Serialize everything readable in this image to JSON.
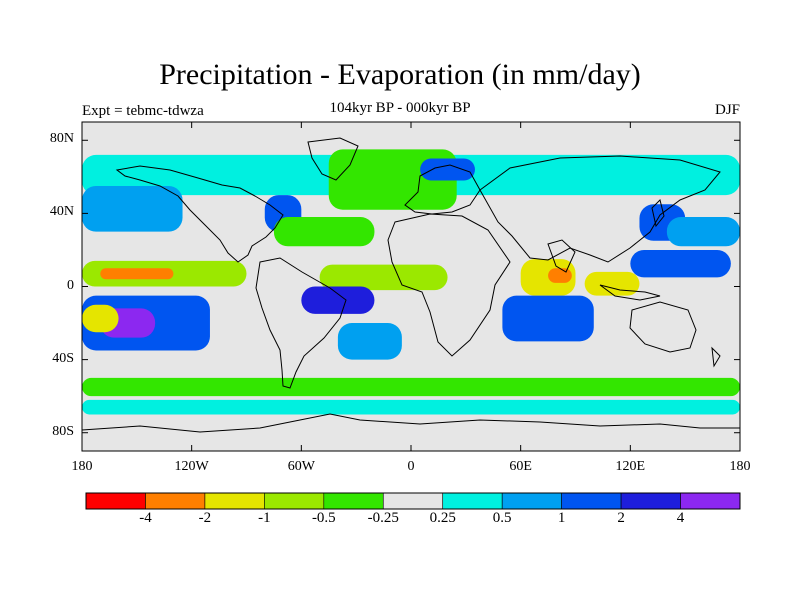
{
  "title": "Precipitation - Evaporation (in mm/day)",
  "subtitle_center": "104kyr BP - 000kyr BP",
  "subtitle_left": "Expt = tebmc-tdwza",
  "subtitle_right": "DJF",
  "map": {
    "background_color": "#e6e6e6",
    "coastline_color": "#000000",
    "lat_range": [
      -90,
      90
    ],
    "lon_range": [
      -180,
      180
    ],
    "y_ticks": [
      {
        "lat": 80,
        "label": "80N"
      },
      {
        "lat": 40,
        "label": "40N"
      },
      {
        "lat": 0,
        "label": "0"
      },
      {
        "lat": -40,
        "label": "40S"
      },
      {
        "lat": -80,
        "label": "80S"
      }
    ],
    "x_ticks": [
      {
        "lon": -180,
        "label": "180"
      },
      {
        "lon": -120,
        "label": "120W"
      },
      {
        "lon": -60,
        "label": "60W"
      },
      {
        "lon": 0,
        "label": "0"
      },
      {
        "lon": 60,
        "label": "60E"
      },
      {
        "lon": 120,
        "label": "120E"
      },
      {
        "lon": 180,
        "label": "180"
      }
    ]
  },
  "colorbar": {
    "colors": [
      "#ff0000",
      "#ff7f00",
      "#e5e500",
      "#9be800",
      "#33e600",
      "#e6e6e6",
      "#00f0e0",
      "#00a0f0",
      "#0055f0",
      "#1e1edc",
      "#8c28f0"
    ],
    "labels": [
      "-4",
      "-2",
      "-1",
      "-0.5",
      "-0.25",
      "0.25",
      "0.5",
      "1",
      "2",
      "4"
    ]
  },
  "chart_data": {
    "type": "heatmap",
    "variable": "Precipitation - Evaporation",
    "units": "mm/day",
    "levels": [
      -4,
      -2,
      -1,
      -0.5,
      -0.25,
      0.25,
      0.5,
      1,
      2,
      4
    ],
    "season": "DJF",
    "regions": [
      {
        "name": "high-lat-north-band",
        "lat": [
          50,
          72
        ],
        "lon": [
          -180,
          180
        ],
        "value": 0.35
      },
      {
        "name": "n-atlantic-storm-track",
        "lat": [
          42,
          75
        ],
        "lon": [
          -45,
          25
        ],
        "value": -0.35
      },
      {
        "name": "scandinavia",
        "lat": [
          58,
          70
        ],
        "lon": [
          5,
          35
        ],
        "value": 1.5
      },
      {
        "name": "n-pacific-east",
        "lat": [
          30,
          55
        ],
        "lon": [
          -180,
          -125
        ],
        "value": 0.7
      },
      {
        "name": "us-east-coast",
        "lat": [
          30,
          50
        ],
        "lon": [
          -80,
          -60
        ],
        "value": 1.5
      },
      {
        "name": "japan",
        "lat": [
          25,
          45
        ],
        "lon": [
          125,
          150
        ],
        "value": 1.5
      },
      {
        "name": "n-pacific-west",
        "lat": [
          22,
          38
        ],
        "lon": [
          140,
          180
        ],
        "value": 0.7
      },
      {
        "name": "n-atlantic-subtrop",
        "lat": [
          22,
          38
        ],
        "lon": [
          -75,
          -20
        ],
        "value": -0.35
      },
      {
        "name": "itcz-pacific",
        "lat": [
          0,
          14
        ],
        "lon": [
          -180,
          -90
        ],
        "value": -0.7
      },
      {
        "name": "itcz-pacific-core",
        "lat": [
          4,
          10
        ],
        "lon": [
          -170,
          -130
        ],
        "value": -3
      },
      {
        "name": "itcz-atlantic",
        "lat": [
          -2,
          12
        ],
        "lon": [
          -50,
          20
        ],
        "value": -0.7
      },
      {
        "name": "indian-ocean-eq",
        "lat": [
          -5,
          15
        ],
        "lon": [
          60,
          90
        ],
        "value": -1.5
      },
      {
        "name": "indian-ocean-core",
        "lat": [
          2,
          10
        ],
        "lon": [
          75,
          88
        ],
        "value": -3
      },
      {
        "name": "maritime-continent",
        "lat": [
          -5,
          8
        ],
        "lon": [
          95,
          125
        ],
        "value": -1.5
      },
      {
        "name": "w-pacific-eq",
        "lat": [
          5,
          20
        ],
        "lon": [
          120,
          175
        ],
        "value": 1.5
      },
      {
        "name": "s-pacific-conv-zone",
        "lat": [
          -35,
          -5
        ],
        "lon": [
          -180,
          -110
        ],
        "value": 1.5
      },
      {
        "name": "spcz-core",
        "lat": [
          -28,
          -12
        ],
        "lon": [
          -170,
          -140
        ],
        "value": 5
      },
      {
        "name": "s-america-atlantic",
        "lat": [
          -15,
          0
        ],
        "lon": [
          -60,
          -20
        ],
        "value": 3
      },
      {
        "name": "s-atlantic-midlat",
        "lat": [
          -40,
          -20
        ],
        "lon": [
          -40,
          -5
        ],
        "value": 0.7
      },
      {
        "name": "s-indian-ocean",
        "lat": [
          -30,
          -5
        ],
        "lon": [
          50,
          100
        ],
        "value": 1.5
      },
      {
        "name": "aus-s-pacific-dry",
        "lat": [
          -25,
          -10
        ],
        "lon": [
          -180,
          -160
        ],
        "value": -1.5
      },
      {
        "name": "s-ocean-band",
        "lat": [
          -60,
          -50
        ],
        "lon": [
          -180,
          180
        ],
        "value": -0.35
      },
      {
        "name": "antarctic-coast",
        "lat": [
          -70,
          -62
        ],
        "lon": [
          -180,
          180
        ],
        "value": 0.35
      }
    ]
  }
}
